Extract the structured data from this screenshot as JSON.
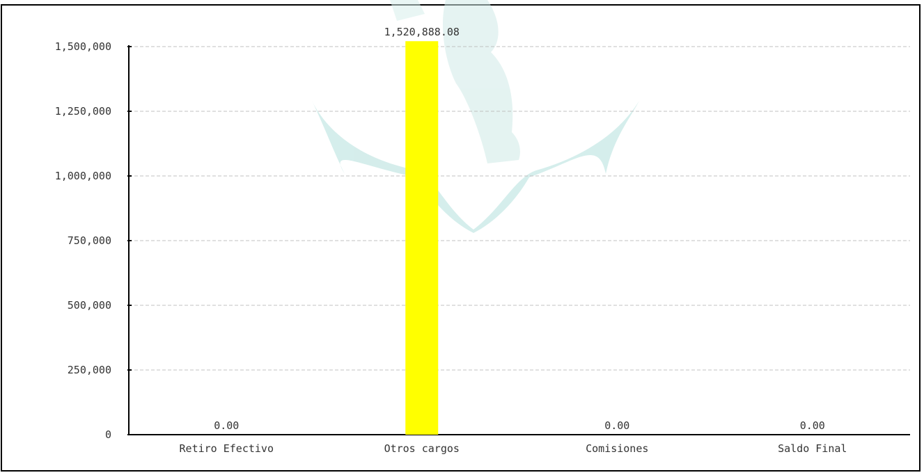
{
  "chart_data": {
    "type": "bar",
    "categories": [
      "Retiro Efectivo",
      "Otros cargos",
      "Comisiones",
      "Saldo Final"
    ],
    "values": [
      0.0,
      1520888.08,
      0.0,
      0.0
    ],
    "data_labels": [
      "0.00",
      "1,520,888.08",
      "0.00",
      "0.00"
    ],
    "yticks": [
      0,
      250000,
      500000,
      750000,
      1000000,
      1250000,
      1500000
    ],
    "ytick_labels": [
      "0",
      "250,000",
      "500,000",
      "750,000",
      "1,000,000",
      "1,250,000",
      "1,500,000"
    ],
    "ylim": [
      0,
      1500000
    ],
    "grid": true,
    "legend": "none",
    "title": "",
    "xlabel": "",
    "ylabel": "",
    "colors": {
      "bar": "#ffff00",
      "grid": "#c0c0c0",
      "axis": "#000000",
      "watermark": "#b3e0dc"
    }
  }
}
